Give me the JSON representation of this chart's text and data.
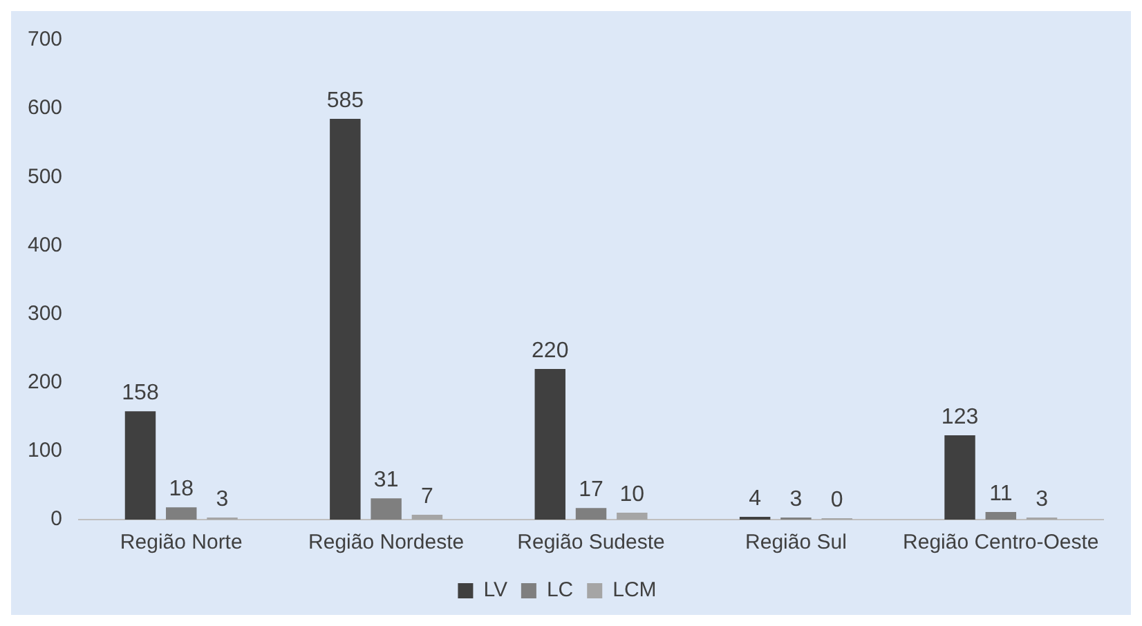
{
  "chart_data": {
    "type": "bar",
    "categories": [
      "Região Norte",
      "Região Nordeste",
      "Região Sudeste",
      "Região Sul",
      "Região Centro-Oeste"
    ],
    "series": [
      {
        "name": "LV",
        "color": "#404040",
        "values": [
          158,
          585,
          220,
          4,
          123
        ]
      },
      {
        "name": "LC",
        "color": "#7f7f7f",
        "values": [
          18,
          31,
          17,
          3,
          11
        ]
      },
      {
        "name": "LCM",
        "color": "#a5a5a5",
        "values": [
          3,
          7,
          10,
          0,
          3
        ]
      }
    ],
    "ylim": [
      0,
      700
    ],
    "yticks": [
      0,
      100,
      200,
      300,
      400,
      500,
      600,
      700
    ],
    "grid": false,
    "legend": "bottom",
    "data_labels": true
  }
}
